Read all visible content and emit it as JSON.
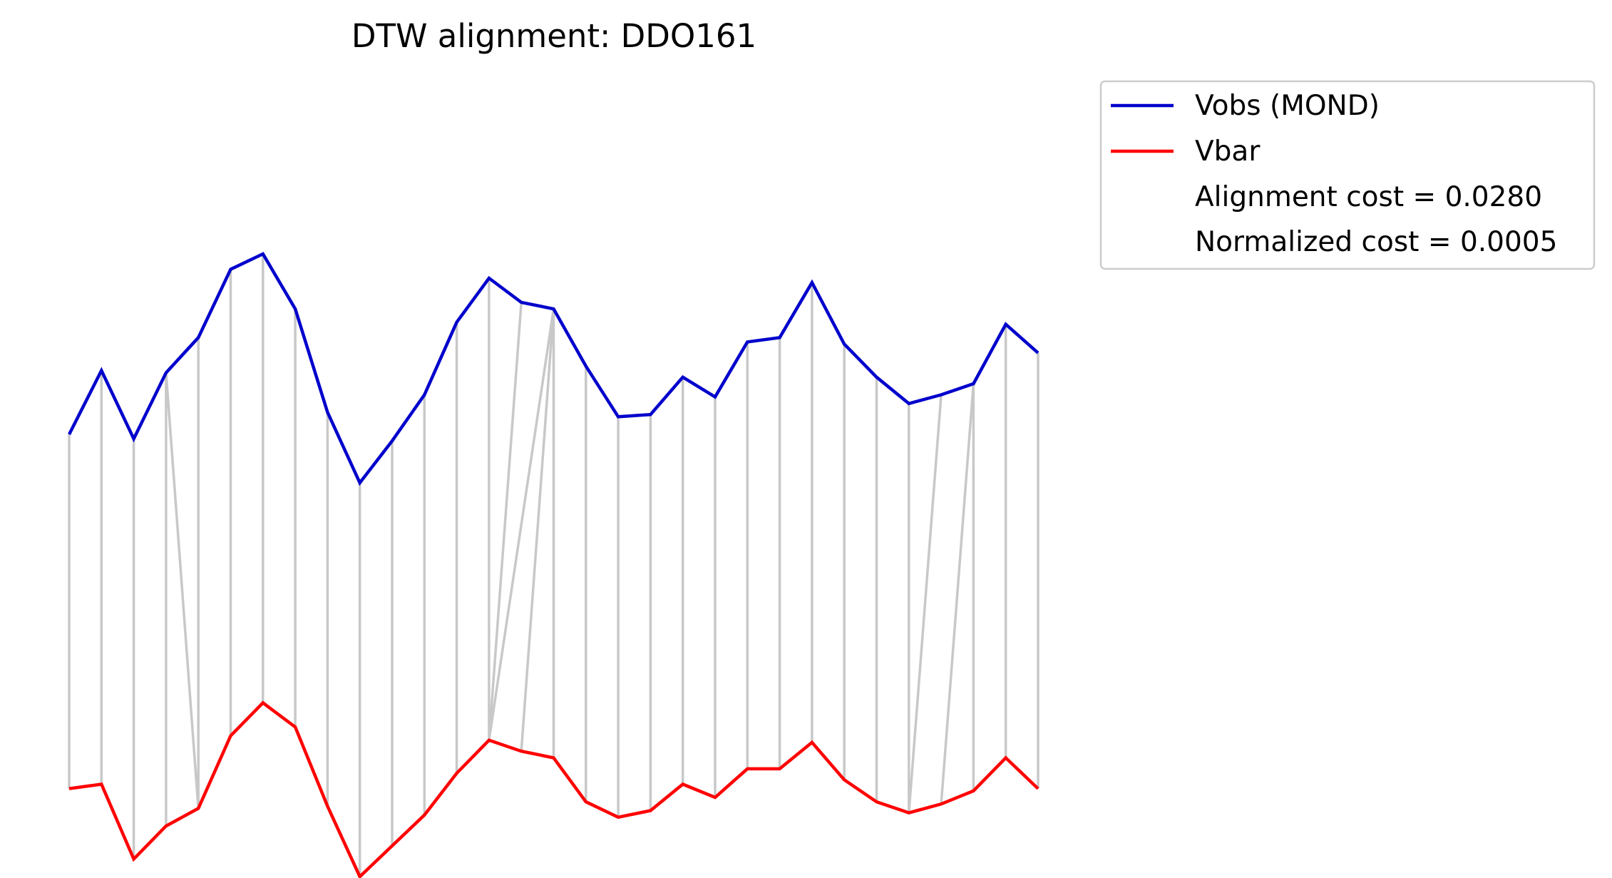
{
  "chart_data": {
    "type": "line",
    "title": "DTW alignment: DDO161",
    "xlabel": "",
    "ylabel": "",
    "axes_visible": false,
    "grid": false,
    "legend_placement": "outside-top-right",
    "x": [
      0,
      1,
      2,
      3,
      4,
      5,
      6,
      7,
      8,
      9,
      10,
      11,
      12,
      13,
      14,
      15,
      16,
      17,
      18,
      19,
      20,
      21,
      22,
      23,
      24,
      25,
      26,
      27,
      28,
      29,
      30
    ],
    "series": [
      {
        "name": "Vobs (MOND)",
        "color": "#0000cc",
        "values": [
          0.66,
          0.95,
          0.64,
          0.94,
          1.1,
          1.41,
          1.48,
          1.23,
          0.76,
          0.44,
          0.63,
          0.84,
          1.17,
          1.37,
          1.26,
          1.23,
          0.97,
          0.74,
          0.75,
          0.92,
          0.83,
          1.08,
          1.1,
          1.35,
          1.07,
          0.92,
          0.8,
          0.84,
          0.89,
          1.16,
          1.03
        ]
      },
      {
        "name": "Vbar",
        "color": "#ff0000",
        "values": [
          -0.95,
          -0.93,
          -1.27,
          -1.12,
          -1.04,
          -0.71,
          -0.56,
          -0.67,
          -1.03,
          -1.35,
          -1.21,
          -1.07,
          -0.88,
          -0.73,
          -0.78,
          -0.81,
          -1.01,
          -1.08,
          -1.05,
          -0.93,
          -0.99,
          -0.86,
          -0.86,
          -0.74,
          -0.91,
          -1.01,
          -1.06,
          -1.02,
          -0.96,
          -0.81,
          -0.95
        ]
      }
    ],
    "alignment_path": [
      [
        0,
        0
      ],
      [
        1,
        1
      ],
      [
        2,
        2
      ],
      [
        3,
        3
      ],
      [
        3,
        4
      ],
      [
        4,
        4
      ],
      [
        5,
        5
      ],
      [
        6,
        6
      ],
      [
        7,
        7
      ],
      [
        8,
        8
      ],
      [
        9,
        9
      ],
      [
        10,
        10
      ],
      [
        11,
        11
      ],
      [
        12,
        12
      ],
      [
        13,
        13
      ],
      [
        14,
        13
      ],
      [
        15,
        13
      ],
      [
        15,
        14
      ],
      [
        15,
        15
      ],
      [
        16,
        16
      ],
      [
        17,
        17
      ],
      [
        18,
        18
      ],
      [
        19,
        19
      ],
      [
        20,
        20
      ],
      [
        21,
        21
      ],
      [
        22,
        22
      ],
      [
        23,
        23
      ],
      [
        24,
        24
      ],
      [
        25,
        25
      ],
      [
        26,
        26
      ],
      [
        27,
        26
      ],
      [
        28,
        27
      ],
      [
        28,
        28
      ],
      [
        29,
        29
      ],
      [
        30,
        30
      ]
    ],
    "alignment_line_color": "#c8c8c8",
    "legend": {
      "entries": [
        {
          "label": "Vobs (MOND)",
          "color": "#0000cc"
        },
        {
          "label": "Vbar",
          "color": "#ff0000"
        }
      ],
      "notes": [
        "Alignment cost = 0.0280",
        "Normalized cost = 0.0005"
      ]
    }
  }
}
